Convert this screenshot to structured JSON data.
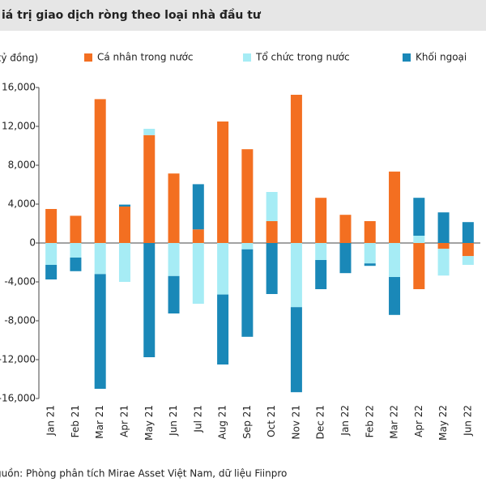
{
  "chart_data": {
    "type": "bar",
    "stacked": true,
    "title": "iá trị giao dịch ròng theo loại nhà đầu tư",
    "y_label": "(tỷ đồng)",
    "source": "guồn: Phòng phân tích Mirae Asset Việt Nam, dữ liệu Fiinpro",
    "categories": [
      "Jan 21",
      "Feb 21",
      "Mar 21",
      "Apr 21",
      "May 21",
      "Jun 21",
      "Jul 21",
      "Aug 21",
      "Sep 21",
      "Oct 21",
      "Nov 21",
      "Dec 21",
      "Jan 22",
      "Feb 22",
      "Mar 22",
      "Apr 22",
      "May 22",
      "Jun 22"
    ],
    "series": [
      {
        "name": "Cá nhân trong nước",
        "color": "#f36f21",
        "values": [
          3500,
          2800,
          14800,
          3750,
          11100,
          7150,
          1400,
          12500,
          9650,
          2250,
          15250,
          4650,
          2900,
          2250,
          7350,
          -4750,
          -600,
          -1350
        ]
      },
      {
        "name": "Tổ chức trong nước",
        "color": "#a6ecf5",
        "values": [
          -2250,
          -1500,
          -3200,
          -4000,
          650,
          -3400,
          -6250,
          -5300,
          -650,
          3000,
          -6600,
          -1750,
          0,
          -2100,
          -3500,
          750,
          -2750,
          -900
        ]
      },
      {
        "name": "Khối ngoại",
        "color": "#1a88b8",
        "values": [
          -1500,
          -1400,
          -11800,
          200,
          -11750,
          -3850,
          4650,
          -7200,
          -9000,
          -5250,
          -8750,
          -3000,
          -3100,
          -250,
          -3900,
          3900,
          3150,
          2150
        ]
      }
    ],
    "ylim": [
      -16000,
      16000
    ],
    "yticks": [
      {
        "value": 16000,
        "label": "16,000"
      },
      {
        "value": 12000,
        "label": "12,000"
      },
      {
        "value": 8000,
        "label": "8,000"
      },
      {
        "value": 4000,
        "label": "4,000"
      },
      0,
      {
        "value": -4000,
        "label": "-4,000"
      },
      {
        "value": -8000,
        "label": "-8,000"
      },
      {
        "value": -12000,
        "label": "-12,000"
      },
      {
        "value": -16000,
        "label": "-16,000"
      }
    ],
    "legend": "top"
  }
}
